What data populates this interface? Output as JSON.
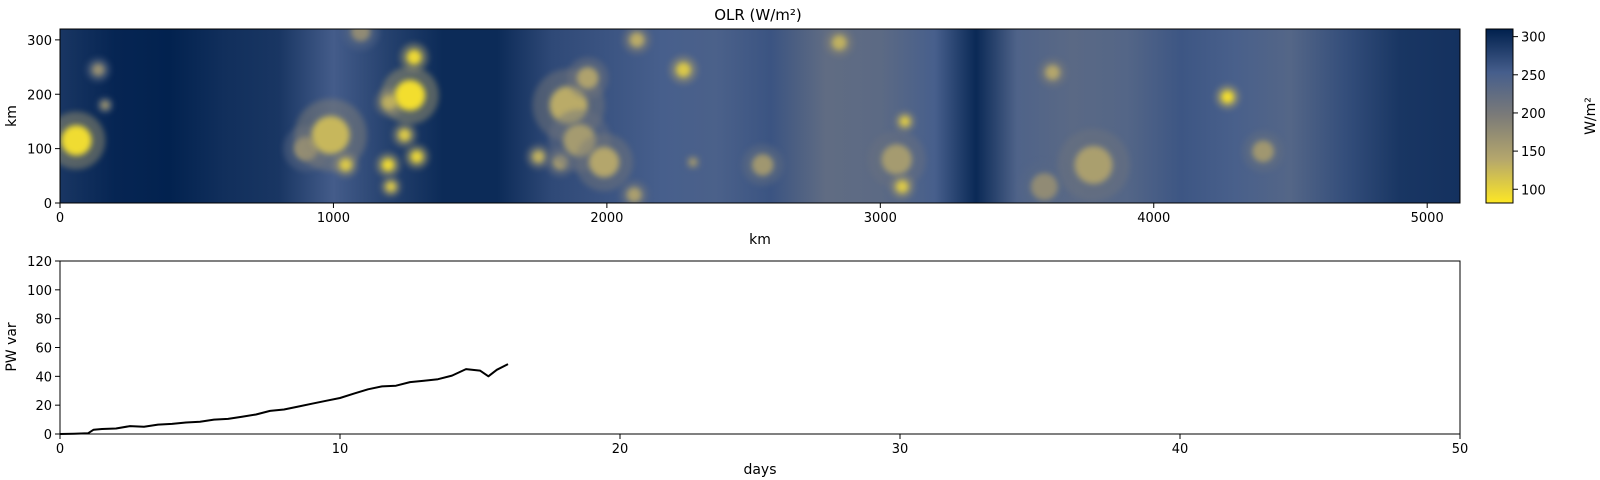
{
  "chart_data": [
    {
      "type": "heatmap",
      "title": "OLR (W/m²)",
      "xlabel": "km",
      "ylabel": "km",
      "xlim": [
        0,
        5120
      ],
      "ylim": [
        0,
        320
      ],
      "xticks": [
        "0",
        "1000",
        "2000",
        "3000",
        "4000",
        "5000"
      ],
      "yticks": [
        "0",
        "100",
        "200",
        "300"
      ],
      "colorbar": {
        "label": "W/m²",
        "range": [
          82,
          310
        ],
        "ticks": [
          "100",
          "150",
          "200",
          "250",
          "300"
        ],
        "colormap": "cividis_r",
        "colors": [
          "#fde725",
          "#b5a76c",
          "#7c7b78",
          "#465e8c",
          "#00204d"
        ]
      },
      "background_olr": [
        [
          0,
          290
        ],
        [
          200,
          305
        ],
        [
          400,
          308
        ],
        [
          600,
          296
        ],
        [
          800,
          290
        ],
        [
          1000,
          255
        ],
        [
          1200,
          280
        ],
        [
          1400,
          300
        ],
        [
          1600,
          300
        ],
        [
          1800,
          272
        ],
        [
          2000,
          262
        ],
        [
          2200,
          252
        ],
        [
          2400,
          248
        ],
        [
          2600,
          262
        ],
        [
          2800,
          226
        ],
        [
          3000,
          230
        ],
        [
          3200,
          252
        ],
        [
          3350,
          302
        ],
        [
          3500,
          244
        ],
        [
          3700,
          232
        ],
        [
          3900,
          238
        ],
        [
          4100,
          260
        ],
        [
          4300,
          250
        ],
        [
          4500,
          238
        ],
        [
          4700,
          268
        ],
        [
          4900,
          290
        ],
        [
          5120,
          294
        ]
      ],
      "convective_cores": [
        {
          "x": 60,
          "y": 115,
          "r": 28,
          "olr": 92
        },
        {
          "x": 140,
          "y": 245,
          "r": 12,
          "olr": 170
        },
        {
          "x": 165,
          "y": 180,
          "r": 8,
          "olr": 160
        },
        {
          "x": 900,
          "y": 100,
          "r": 22,
          "olr": 165
        },
        {
          "x": 990,
          "y": 125,
          "r": 35,
          "olr": 125
        },
        {
          "x": 1045,
          "y": 70,
          "r": 12,
          "olr": 110
        },
        {
          "x": 1100,
          "y": 315,
          "r": 18,
          "olr": 175
        },
        {
          "x": 1200,
          "y": 70,
          "r": 12,
          "olr": 95
        },
        {
          "x": 1210,
          "y": 30,
          "r": 10,
          "olr": 110
        },
        {
          "x": 1205,
          "y": 185,
          "r": 14,
          "olr": 120
        },
        {
          "x": 1260,
          "y": 125,
          "r": 12,
          "olr": 110
        },
        {
          "x": 1280,
          "y": 198,
          "r": 28,
          "olr": 90
        },
        {
          "x": 1295,
          "y": 268,
          "r": 14,
          "olr": 95
        },
        {
          "x": 1305,
          "y": 85,
          "r": 12,
          "olr": 100
        },
        {
          "x": 1750,
          "y": 85,
          "r": 12,
          "olr": 130
        },
        {
          "x": 1830,
          "y": 75,
          "r": 14,
          "olr": 150
        },
        {
          "x": 1860,
          "y": 180,
          "r": 35,
          "olr": 135
        },
        {
          "x": 1900,
          "y": 115,
          "r": 30,
          "olr": 155
        },
        {
          "x": 1930,
          "y": 230,
          "r": 20,
          "olr": 145
        },
        {
          "x": 1990,
          "y": 75,
          "r": 28,
          "olr": 140
        },
        {
          "x": 2110,
          "y": 300,
          "r": 14,
          "olr": 135
        },
        {
          "x": 2100,
          "y": 15,
          "r": 14,
          "olr": 150
        },
        {
          "x": 2280,
          "y": 245,
          "r": 14,
          "olr": 110
        },
        {
          "x": 2315,
          "y": 75,
          "r": 8,
          "olr": 160
        },
        {
          "x": 2570,
          "y": 70,
          "r": 20,
          "olr": 160
        },
        {
          "x": 2850,
          "y": 295,
          "r": 14,
          "olr": 130
        },
        {
          "x": 3060,
          "y": 80,
          "r": 28,
          "olr": 155
        },
        {
          "x": 3080,
          "y": 30,
          "r": 12,
          "olr": 110
        },
        {
          "x": 3090,
          "y": 150,
          "r": 10,
          "olr": 110
        },
        {
          "x": 3600,
          "y": 30,
          "r": 25,
          "olr": 175
        },
        {
          "x": 3630,
          "y": 240,
          "r": 14,
          "olr": 140
        },
        {
          "x": 3780,
          "y": 70,
          "r": 35,
          "olr": 150
        },
        {
          "x": 4270,
          "y": 195,
          "r": 12,
          "olr": 90
        },
        {
          "x": 4400,
          "y": 95,
          "r": 20,
          "olr": 160
        }
      ]
    },
    {
      "type": "line",
      "xlabel": "days",
      "ylabel": "PW var",
      "xlim": [
        0,
        50
      ],
      "ylim": [
        0,
        120
      ],
      "xticks": [
        "0",
        "10",
        "20",
        "30",
        "40",
        "50"
      ],
      "yticks": [
        "0",
        "20",
        "40",
        "60",
        "80",
        "100",
        "120"
      ],
      "series": [
        {
          "color": "#000000",
          "x": [
            0,
            0.5,
            1.0,
            1.2,
            1.5,
            2.0,
            2.5,
            3.0,
            3.5,
            4.0,
            4.5,
            5.0,
            5.5,
            6.0,
            6.5,
            7.0,
            7.5,
            8.0,
            8.5,
            9.0,
            9.5,
            10.0,
            10.5,
            11.0,
            11.5,
            12.0,
            12.5,
            13.0,
            13.5,
            14.0,
            14.5,
            15.0,
            15.3,
            15.6,
            16.0
          ],
          "y": [
            0,
            0.2,
            0.5,
            3.0,
            3.5,
            3.8,
            5.5,
            5.0,
            6.5,
            7.0,
            8.0,
            8.5,
            10.0,
            10.5,
            12.0,
            13.5,
            16.0,
            17.0,
            19.0,
            21.0,
            23.0,
            25.0,
            28.0,
            31.0,
            33.0,
            33.5,
            36.0,
            37.0,
            38.0,
            40.5,
            45.0,
            44.0,
            40.0,
            44.5,
            48.5
          ]
        }
      ]
    }
  ]
}
